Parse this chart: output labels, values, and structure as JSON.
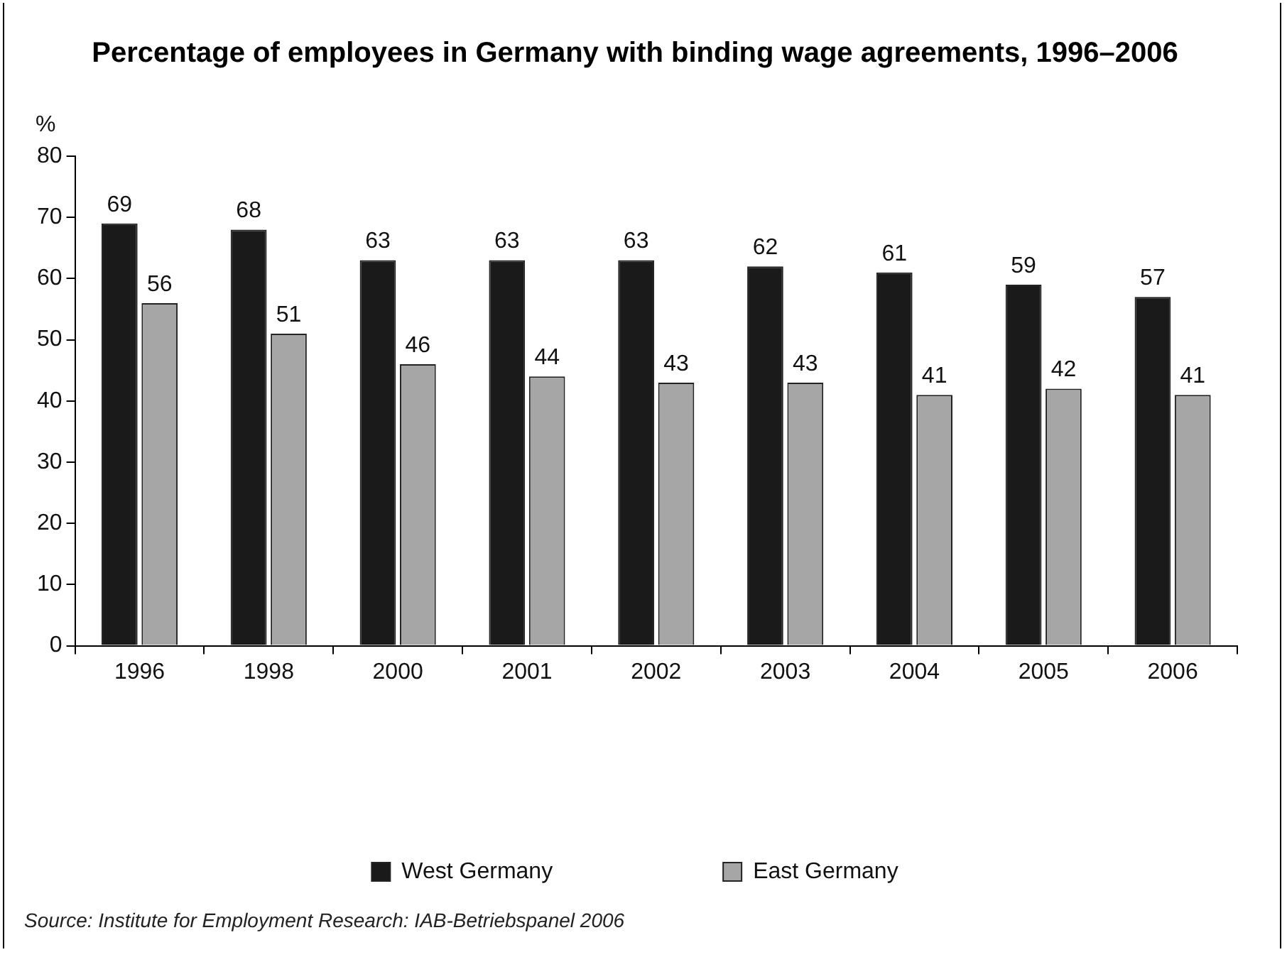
{
  "chart_data": {
    "type": "bar",
    "title": "Percentage of employees in Germany with binding wage agreements, 1996–2006",
    "ylabel": "%",
    "categories": [
      "1996",
      "1998",
      "2000",
      "2001",
      "2002",
      "2003",
      "2004",
      "2005",
      "2006"
    ],
    "series": [
      {
        "name": "West Germany",
        "color": "#1a1a1a",
        "values": [
          69,
          68,
          63,
          63,
          63,
          62,
          61,
          59,
          57
        ]
      },
      {
        "name": "East Germany",
        "color": "#a6a6a6",
        "values": [
          56,
          51,
          46,
          44,
          43,
          43,
          41,
          42,
          41
        ]
      }
    ],
    "ylim": [
      0,
      80
    ],
    "yticks": [
      0,
      10,
      20,
      30,
      40,
      50,
      60,
      70,
      80
    ],
    "grid": false,
    "legend": "bottom",
    "data_labels": true,
    "annotations": [
      "Source: Institute for Employment Research: IAB-Betriebspanel 2006"
    ]
  }
}
